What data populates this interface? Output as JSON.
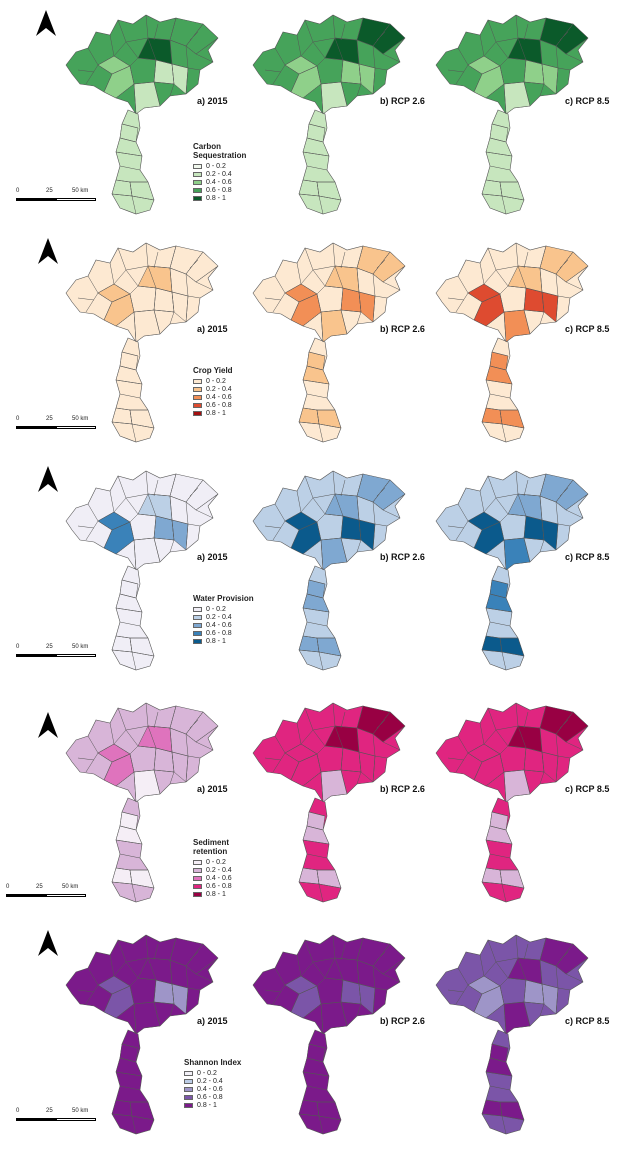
{
  "panels": [
    {
      "id": "carbon",
      "legend_title": "Carbon Sequestration",
      "legend_lines": [
        "Carbon",
        "Sequestration"
      ],
      "classes": [
        "0 - 0.2",
        "0.2 - 0.4",
        "0.4 - 0.6",
        "0.6 - 0.8",
        "0.8 - 1"
      ],
      "colors": [
        "#f1f8ee",
        "#c7e6be",
        "#8fd08a",
        "#46a35a",
        "#0b5a2a"
      ],
      "scenarios": [
        "a) 2015",
        "b) RCP 2.6",
        "c) RCP 8.5"
      ],
      "map_levels": [
        [
          3,
          2,
          1
        ],
        [
          3,
          2,
          1
        ],
        [
          3,
          2,
          1
        ]
      ]
    },
    {
      "id": "crop",
      "legend_title": "Crop Yield",
      "legend_lines": [
        "Crop Yield"
      ],
      "classes": [
        "0 - 0.2",
        "0.2 - 0.4",
        "0.4 - 0.6",
        "0.6 - 0.8",
        "0.8 - 1"
      ],
      "colors": [
        "#fde9d2",
        "#f9c48d",
        "#f28f56",
        "#de4b30",
        "#a30f0f"
      ],
      "scenarios": [
        "a) 2015",
        "b) RCP 2.6",
        "c) RCP 8.5"
      ],
      "map_levels": [
        [
          0,
          1,
          0
        ],
        [
          0,
          2,
          1
        ],
        [
          0,
          3,
          2
        ]
      ]
    },
    {
      "id": "water",
      "legend_title": "Water Provision",
      "legend_lines": [
        "Water Provision"
      ],
      "classes": [
        "0 - 0.2",
        "0.2 - 0.4",
        "0.4 - 0.6",
        "0.6 - 0.8",
        "0.8 - 1"
      ],
      "colors": [
        "#f0eef6",
        "#bcd0e6",
        "#7fa8d1",
        "#3a82b9",
        "#0b5a8c"
      ],
      "scenarios": [
        "a) 2015",
        "b) RCP 2.6",
        "c) RCP 8.5"
      ],
      "map_levels": [
        [
          0,
          3,
          0
        ],
        [
          1,
          4,
          2
        ],
        [
          1,
          4,
          3
        ]
      ]
    },
    {
      "id": "sediment",
      "legend_title": "Sediment retention",
      "legend_lines": [
        "Sediment",
        "retention"
      ],
      "classes": [
        "0 - 0.2",
        "0.2 - 0.4",
        "0.4 - 0.6",
        "0.6 - 0.8",
        "0.8 - 1"
      ],
      "colors": [
        "#f5eef6",
        "#d8b5d8",
        "#df73bd",
        "#e02580",
        "#980043"
      ],
      "scenarios": [
        "a) 2015",
        "b) RCP 2.6",
        "c) RCP 8.5"
      ],
      "map_levels": [
        [
          1,
          2,
          0
        ],
        [
          3,
          3,
          1
        ],
        [
          3,
          3,
          1
        ]
      ]
    },
    {
      "id": "shannon",
      "legend_title": "Shannon Index",
      "legend_lines": [
        "Shannon Index"
      ],
      "classes": [
        "0 - 0.2",
        "0.2 - 0.4",
        "0.4 - 0.6",
        "0.6 - 0.8",
        "0.8 - 1"
      ],
      "colors": [
        "#f2f0f7",
        "#bccde6",
        "#9e95c8",
        "#7b55a8",
        "#7b1a8a"
      ],
      "scenarios": [
        "a) 2015",
        "b) RCP 2.6",
        "c) RCP 8.5"
      ],
      "map_levels": [
        [
          4,
          3,
          4
        ],
        [
          4,
          3,
          4
        ],
        [
          3,
          2,
          4
        ]
      ]
    }
  ],
  "scale": {
    "labels": [
      "0",
      "25",
      "50 km"
    ]
  }
}
